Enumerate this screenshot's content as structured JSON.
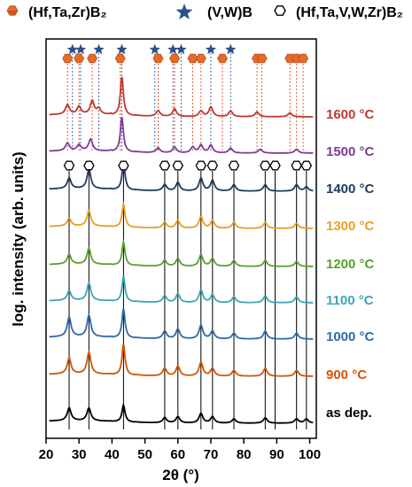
{
  "chart_data": {
    "type": "line",
    "xlabel": "2θ (°)",
    "ylabel": "log. intensity (arb. units)",
    "xlim": [
      20,
      102
    ],
    "xticks": [
      20,
      30,
      40,
      50,
      60,
      70,
      80,
      90,
      100
    ],
    "yticks": "none",
    "legend": {
      "placement": "top",
      "entries": [
        {
          "label": "(Hf,Ta,Zr)B₂",
          "marker": "hexagon-filled",
          "color": "#e8692a"
        },
        {
          "label": "(V,W)B",
          "marker": "star",
          "color": "#2d4f8e"
        },
        {
          "label": "(Hf,Ta,V,W,Zr)B₂",
          "marker": "hexagon-open",
          "color": "#000000"
        }
      ]
    },
    "reference_peaks": {
      "hfta_zr_b2": {
        "marker": "hexagon-filled",
        "color": "#e8692a",
        "line_color": "#d8502a",
        "positions": [
          26.5,
          30.0,
          34.0,
          42.5,
          54.0,
          59.0,
          64.5,
          67.0,
          73.5,
          84.0,
          85.5,
          94.0,
          96.0,
          98.0
        ]
      },
      "vw_b": {
        "marker": "star",
        "color": "#2d4f8e",
        "line_color": "#3c5fa0",
        "positions": [
          28.0,
          30.5,
          36.0,
          43.0,
          53.0,
          58.5,
          61.0,
          70.0,
          76.0
        ]
      },
      "hftavwzr_b2": {
        "marker": "hexagon-open",
        "color": "#000000",
        "line_color": "#000000",
        "positions": [
          27.0,
          33.0,
          43.5,
          56.0,
          60.0,
          67.0,
          70.5,
          77.0,
          86.5,
          89.5,
          96.0,
          99.0
        ]
      }
    },
    "series": [
      {
        "name": "1600 °C",
        "color": "#c0392b",
        "peaks": [
          [
            26.5,
            0.5
          ],
          [
            30.0,
            0.4
          ],
          [
            34.0,
            0.7
          ],
          [
            36.0,
            0.3
          ],
          [
            43.0,
            2.0
          ],
          [
            54.0,
            0.3
          ],
          [
            59.0,
            0.4
          ],
          [
            67.0,
            0.3
          ],
          [
            70.0,
            0.5
          ],
          [
            76.0,
            0.3
          ],
          [
            84.0,
            0.25
          ],
          [
            94.0,
            0.2
          ]
        ]
      },
      {
        "name": "1500 °C",
        "color": "#7d3c98",
        "peaks": [
          [
            26.5,
            0.4
          ],
          [
            30.0,
            0.3
          ],
          [
            33.5,
            0.6
          ],
          [
            43.0,
            1.8
          ],
          [
            54.0,
            0.25
          ],
          [
            59.0,
            0.3
          ],
          [
            64.5,
            0.3
          ],
          [
            67.0,
            0.4
          ],
          [
            70.0,
            0.4
          ],
          [
            76.0,
            0.25
          ],
          [
            85.0,
            0.2
          ],
          [
            96.0,
            0.2
          ]
        ]
      },
      {
        "name": "1400 °C",
        "color": "#1f3a5f",
        "peaks": [
          [
            27.0,
            0.5
          ],
          [
            33.0,
            0.9
          ],
          [
            43.5,
            1.3
          ],
          [
            56.0,
            0.3
          ],
          [
            60.0,
            0.4
          ],
          [
            67.0,
            0.6
          ],
          [
            70.5,
            0.5
          ],
          [
            77.0,
            0.3
          ],
          [
            86.5,
            0.3
          ],
          [
            96.0,
            0.3
          ],
          [
            99.0,
            0.2
          ]
        ]
      },
      {
        "name": "1300 °C",
        "color": "#e6a020",
        "peaks": [
          [
            27.0,
            0.4
          ],
          [
            33.0,
            0.8
          ],
          [
            43.5,
            1.2
          ],
          [
            56.0,
            0.3
          ],
          [
            60.0,
            0.4
          ],
          [
            67.0,
            0.6
          ],
          [
            70.5,
            0.4
          ],
          [
            77.0,
            0.3
          ],
          [
            86.5,
            0.3
          ],
          [
            96.0,
            0.25
          ]
        ]
      },
      {
        "name": "1200 °C",
        "color": "#5aa02c",
        "peaks": [
          [
            27.0,
            0.5
          ],
          [
            33.0,
            0.8
          ],
          [
            43.5,
            1.2
          ],
          [
            56.0,
            0.3
          ],
          [
            60.0,
            0.4
          ],
          [
            67.0,
            0.6
          ],
          [
            70.5,
            0.4
          ],
          [
            77.0,
            0.3
          ],
          [
            86.5,
            0.3
          ],
          [
            96.0,
            0.25
          ]
        ]
      },
      {
        "name": "1100 °C",
        "color": "#3aa6b6",
        "peaks": [
          [
            27.0,
            0.5
          ],
          [
            33.0,
            0.9
          ],
          [
            43.5,
            1.3
          ],
          [
            56.0,
            0.35
          ],
          [
            60.0,
            0.45
          ],
          [
            67.0,
            0.65
          ],
          [
            70.5,
            0.4
          ],
          [
            77.0,
            0.3
          ],
          [
            86.5,
            0.35
          ],
          [
            96.0,
            0.3
          ]
        ]
      },
      {
        "name": "1000 °C",
        "color": "#2c6aa8",
        "peaks": [
          [
            27.0,
            1.0
          ],
          [
            33.0,
            1.1
          ],
          [
            43.5,
            1.5
          ],
          [
            56.0,
            0.4
          ],
          [
            60.0,
            0.5
          ],
          [
            67.0,
            0.7
          ],
          [
            70.5,
            0.4
          ],
          [
            77.0,
            0.3
          ],
          [
            86.5,
            0.4
          ],
          [
            96.0,
            0.3
          ]
        ]
      },
      {
        "name": "900 °C",
        "color": "#d35400",
        "peaks": [
          [
            27.0,
            0.8
          ],
          [
            33.0,
            1.1
          ],
          [
            43.5,
            1.6
          ],
          [
            56.0,
            0.4
          ],
          [
            60.0,
            0.5
          ],
          [
            67.0,
            0.7
          ],
          [
            70.5,
            0.4
          ],
          [
            77.0,
            0.3
          ],
          [
            86.5,
            0.4
          ],
          [
            96.0,
            0.3
          ]
        ]
      },
      {
        "name": "as dep.",
        "color": "#000000",
        "peaks": [
          [
            27.0,
            0.6
          ],
          [
            33.0,
            0.6
          ],
          [
            43.5,
            0.8
          ],
          [
            56.0,
            0.25
          ],
          [
            60.0,
            0.3
          ],
          [
            67.0,
            0.45
          ],
          [
            70.5,
            0.3
          ],
          [
            77.0,
            0.2
          ],
          [
            86.5,
            0.25
          ],
          [
            96.0,
            0.2
          ],
          [
            99.0,
            0.2
          ]
        ]
      }
    ]
  }
}
